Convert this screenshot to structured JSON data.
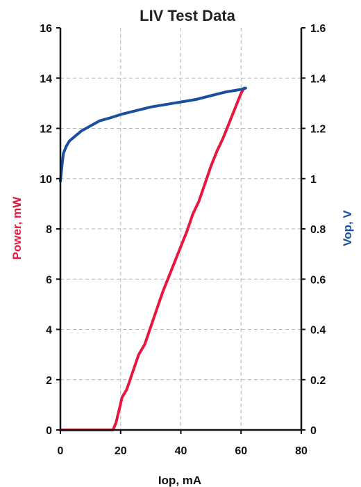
{
  "chart_data": {
    "type": "line",
    "title": "LIV Test Data",
    "xlabel": "Iop, mA",
    "ylabel": "Power, mW",
    "y2label": "Vop, V",
    "xlim": [
      0,
      80
    ],
    "ylim": [
      0,
      16
    ],
    "y2lim": [
      0,
      1.6
    ],
    "x_ticks": [
      "0",
      "20",
      "40",
      "60",
      "80"
    ],
    "y_ticks": [
      "0",
      "2",
      "4",
      "6",
      "8",
      "10",
      "12",
      "14",
      "16"
    ],
    "y2_ticks": [
      "0",
      "0.2",
      "0.4",
      "0.6",
      "0.8",
      "1",
      "1.2",
      "1.4",
      "1.6"
    ],
    "grid": true,
    "colors": {
      "power": "#e8173f",
      "voltage": "#1a4fa0"
    },
    "series": [
      {
        "axis": "left",
        "color": "#e8173f",
        "x": [
          0,
          10,
          17.5,
          18.5,
          19.5,
          20.5,
          22,
          24,
          26,
          28,
          30,
          32,
          34,
          36,
          38,
          40,
          42,
          44,
          46,
          48,
          50,
          52,
          54,
          56,
          58,
          59,
          60,
          61
        ],
        "y": [
          0,
          0,
          0,
          0.3,
          0.8,
          1.3,
          1.6,
          2.3,
          3.0,
          3.4,
          4.1,
          4.8,
          5.5,
          6.1,
          6.7,
          7.3,
          7.9,
          8.6,
          9.1,
          9.8,
          10.5,
          11.1,
          11.6,
          12.2,
          12.8,
          13.1,
          13.4,
          13.6
        ]
      },
      {
        "axis": "right",
        "color": "#1a4fa0",
        "x": [
          0,
          0.5,
          1,
          2,
          3,
          5,
          7,
          10,
          13,
          16,
          20,
          25,
          30,
          35,
          40,
          45,
          50,
          55,
          60,
          61.5
        ],
        "y": [
          0.99,
          1.05,
          1.1,
          1.13,
          1.15,
          1.17,
          1.19,
          1.21,
          1.23,
          1.24,
          1.255,
          1.27,
          1.285,
          1.295,
          1.305,
          1.315,
          1.33,
          1.345,
          1.355,
          1.36
        ]
      }
    ]
  }
}
